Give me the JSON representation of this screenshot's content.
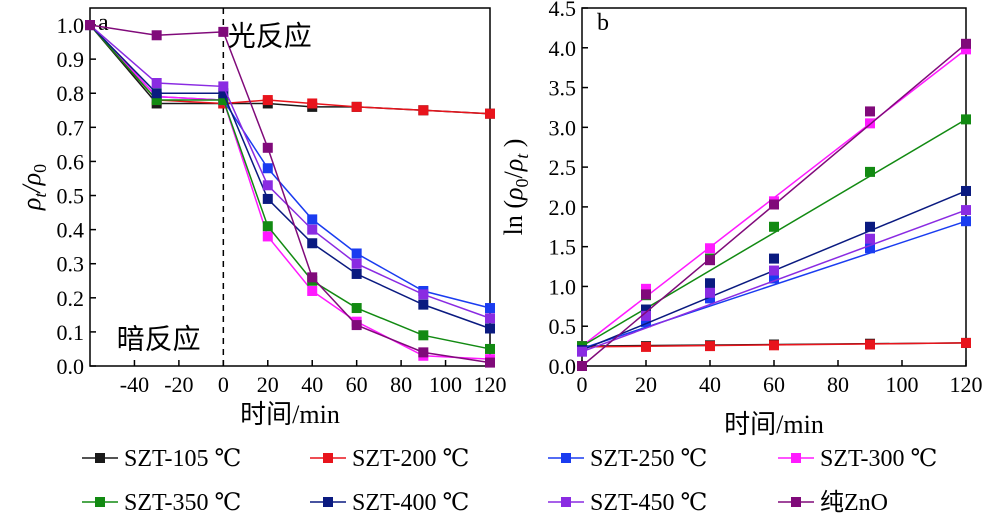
{
  "figure": {
    "legend": [
      {
        "name": "SZT-105 ℃",
        "color": "#1a1a1a"
      },
      {
        "name": "SZT-200 ℃",
        "color": "#e8141c"
      },
      {
        "name": "SZT-250 ℃",
        "color": "#1a3cf0"
      },
      {
        "name": "SZT-300 ℃",
        "color": "#ff1aff"
      },
      {
        "name": "SZT-350 ℃",
        "color": "#128a12"
      },
      {
        "name": "SZT-400 ℃",
        "color": "#0a1a80"
      },
      {
        "name": "SZT-450 ℃",
        "color": "#8a2be2"
      },
      {
        "name": "纯ZnO",
        "color": "#800a7a"
      }
    ],
    "legend_placement": "bottom"
  },
  "chart_data": [
    {
      "panel": "a",
      "type": "line",
      "xlabel": "时间/min",
      "ylabel_parts": [
        "ρ",
        "t",
        "/ρ",
        "0"
      ],
      "xlim": [
        -60,
        120
      ],
      "ylim": [
        0,
        1.05
      ],
      "xticks": [
        -40,
        -20,
        0,
        20,
        40,
        60,
        80,
        100,
        120
      ],
      "xtick_labels": [
        "-40",
        "-20",
        "0",
        "20",
        "40",
        "60",
        "80",
        "100",
        "120"
      ],
      "yticks": [
        0,
        0.1,
        0.2,
        0.3,
        0.4,
        0.5,
        0.6,
        0.7,
        0.8,
        0.9,
        1.0
      ],
      "ytick_labels": [
        "0.0",
        "0.1",
        "0.2",
        "0.3",
        "0.4",
        "0.5",
        "0.6",
        "0.7",
        "0.8",
        "0.9",
        "1.0"
      ],
      "grid": false,
      "annotations": [
        {
          "text": "光反应",
          "x": 2,
          "y": 0.97
        },
        {
          "text": "暗反应",
          "x": -48,
          "y": 0.08
        }
      ],
      "divider_x": 0,
      "x": [
        -60,
        -30,
        0,
        20,
        40,
        60,
        90,
        120
      ],
      "series": [
        {
          "name": "SZT-105 ℃",
          "color": "#1a1a1a",
          "values": [
            1.0,
            0.77,
            0.77,
            0.77,
            0.76,
            0.76,
            0.75,
            0.74
          ]
        },
        {
          "name": "SZT-200 ℃",
          "color": "#e8141c",
          "values": [
            1.0,
            0.78,
            0.77,
            0.78,
            0.77,
            0.76,
            0.75,
            0.74
          ]
        },
        {
          "name": "SZT-250 ℃",
          "color": "#1a3cf0",
          "values": [
            1.0,
            0.79,
            0.78,
            0.58,
            0.43,
            0.33,
            0.22,
            0.17
          ]
        },
        {
          "name": "SZT-300 ℃",
          "color": "#ff1aff",
          "values": [
            1.0,
            0.79,
            0.78,
            0.38,
            0.22,
            0.13,
            0.03,
            0.02
          ]
        },
        {
          "name": "SZT-350 ℃",
          "color": "#128a12",
          "values": [
            1.0,
            0.78,
            0.78,
            0.41,
            0.25,
            0.17,
            0.09,
            0.05
          ]
        },
        {
          "name": "SZT-400 ℃",
          "color": "#0a1a80",
          "values": [
            1.0,
            0.8,
            0.8,
            0.49,
            0.36,
            0.27,
            0.18,
            0.11
          ]
        },
        {
          "name": "SZT-450 ℃",
          "color": "#8a2be2",
          "values": [
            1.0,
            0.83,
            0.82,
            0.53,
            0.4,
            0.3,
            0.21,
            0.14
          ]
        },
        {
          "name": "纯ZnO",
          "color": "#800a7a",
          "values": [
            1.0,
            0.97,
            0.98,
            0.64,
            0.26,
            0.12,
            0.04,
            0.01
          ]
        }
      ]
    },
    {
      "panel": "b",
      "type": "scatter",
      "xlabel": "时间/min",
      "ylabel_parts": [
        "ln (",
        "ρ",
        "0",
        "/",
        "ρ",
        "t",
        " )"
      ],
      "xlim": [
        0,
        120
      ],
      "ylim": [
        0,
        4.5
      ],
      "xticks": [
        0,
        20,
        40,
        60,
        80,
        100,
        120
      ],
      "xtick_labels": [
        "0",
        "20",
        "40",
        "60",
        "80",
        "100",
        "120"
      ],
      "yticks": [
        0,
        0.5,
        1.0,
        1.5,
        2.0,
        2.5,
        3.0,
        3.5,
        4.0,
        4.5
      ],
      "ytick_labels": [
        "0.0",
        "0.5",
        "1.0",
        "1.5",
        "2.0",
        "2.5",
        "3.0",
        "3.5",
        "4.0",
        "4.5"
      ],
      "grid": false,
      "x": [
        0,
        20,
        40,
        60,
        90,
        120
      ],
      "series": [
        {
          "name": "SZT-105 ℃",
          "color": "#1a1a1a",
          "values": [
            0.25,
            0.25,
            0.26,
            0.27,
            0.28,
            0.29
          ],
          "fit": [
            0.25,
            0.29
          ]
        },
        {
          "name": "SZT-200 ℃",
          "color": "#e8141c",
          "values": [
            0.24,
            0.24,
            0.25,
            0.26,
            0.27,
            0.29
          ],
          "fit": [
            0.24,
            0.29
          ]
        },
        {
          "name": "SZT-250 ℃",
          "color": "#1a3cf0",
          "values": [
            0.22,
            0.55,
            0.85,
            1.1,
            1.48,
            1.82
          ],
          "fit": [
            0.22,
            1.82
          ]
        },
        {
          "name": "SZT-300 ℃",
          "color": "#ff1aff",
          "values": [
            0.25,
            0.97,
            1.48,
            2.07,
            3.05,
            3.98
          ],
          "fit": [
            0.25,
            3.98
          ]
        },
        {
          "name": "SZT-350 ℃",
          "color": "#128a12",
          "values": [
            0.25,
            0.89,
            1.35,
            1.75,
            2.44,
            3.1
          ],
          "fit": [
            0.25,
            3.1
          ]
        },
        {
          "name": "SZT-400 ℃",
          "color": "#0a1a80",
          "values": [
            0.2,
            0.71,
            1.04,
            1.35,
            1.75,
            2.2
          ],
          "fit": [
            0.2,
            2.2
          ]
        },
        {
          "name": "SZT-450 ℃",
          "color": "#8a2be2",
          "values": [
            0.18,
            0.63,
            0.92,
            1.2,
            1.6,
            1.96
          ],
          "fit": [
            0.18,
            1.96
          ]
        },
        {
          "name": "纯ZnO",
          "color": "#800a7a",
          "values": [
            0.0,
            0.9,
            1.33,
            2.03,
            3.2,
            4.05
          ],
          "fit": [
            0.0,
            4.05
          ]
        }
      ]
    }
  ]
}
